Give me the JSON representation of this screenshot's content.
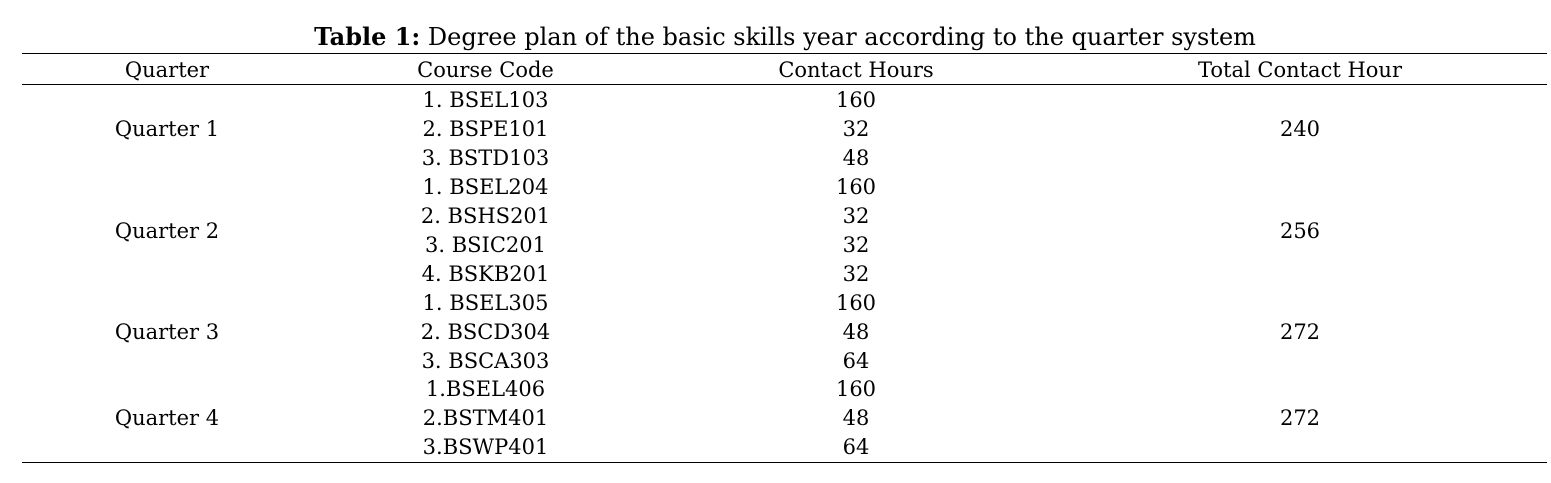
{
  "caption": {
    "label": "Table 1:",
    "text": " Degree plan of the basic skills year according to the quarter system"
  },
  "headers": {
    "quarter": "Quarter",
    "course_code": "Course Code",
    "contact_hours": "Contact Hours",
    "total": "Total Contact Hour"
  },
  "groups": [
    {
      "quarter": "Quarter 1",
      "courses": [
        "1. BSEL103",
        "2. BSPE101",
        "3. BSTD103"
      ],
      "hours": [
        "160",
        "32",
        "48"
      ],
      "total": "240"
    },
    {
      "quarter": "Quarter 2",
      "courses": [
        "1. BSEL204",
        "2. BSHS201",
        "3. BSIC201",
        "4. BSKB201"
      ],
      "hours": [
        "160",
        "32",
        "32",
        "32"
      ],
      "total": "256"
    },
    {
      "quarter": "Quarter 3",
      "courses": [
        "1. BSEL305",
        "2. BSCD304",
        "3. BSCA303"
      ],
      "hours": [
        "160",
        "48",
        "64"
      ],
      "total": "272"
    },
    {
      "quarter": "Quarter 4",
      "courses": [
        "1.BSEL406",
        "2.BSTM401",
        "3.BSWP401"
      ],
      "hours": [
        "160",
        "48",
        "64"
      ],
      "total": "272"
    }
  ]
}
